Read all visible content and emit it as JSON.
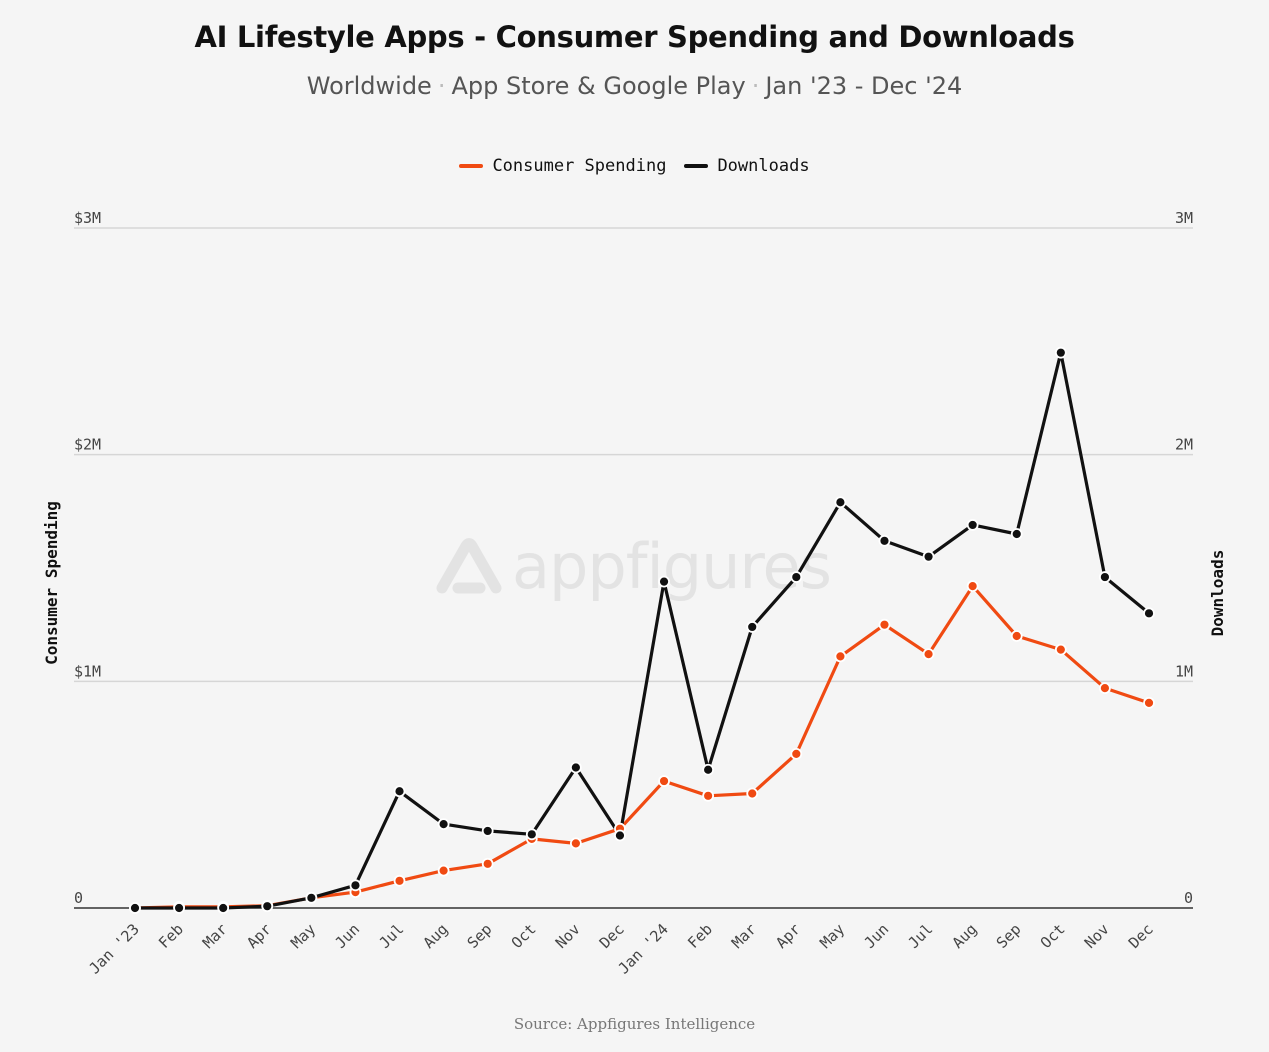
{
  "title": "AI Lifestyle Apps - Consumer Spending and Downloads",
  "subtitle": {
    "region": "Worldwide",
    "stores": "App Store & Google Play",
    "period": "Jan '23 - Dec '24",
    "separator": "·"
  },
  "watermark": "appfigures",
  "source": "Source: Appfigures Intelligence",
  "chart_data": {
    "type": "line",
    "categories": [
      "Jan '23",
      "Feb",
      "Mar",
      "Apr",
      "May",
      "Jun",
      "Jul",
      "Aug",
      "Sep",
      "Oct",
      "Nov",
      "Dec",
      "Jan '24",
      "Feb",
      "Mar",
      "Apr",
      "May",
      "Jun",
      "Jul",
      "Aug",
      "Sep",
      "Oct",
      "Nov",
      "Dec"
    ],
    "series": [
      {
        "name": "Consumer Spending",
        "color": "#f04a12",
        "axis": "left",
        "values": [
          0,
          5000,
          5000,
          10000,
          45000,
          70000,
          120000,
          165000,
          195000,
          305000,
          285000,
          350000,
          560000,
          495000,
          505000,
          680000,
          1110000,
          1250000,
          1120000,
          1420000,
          1200000,
          1140000,
          970000,
          905000
        ]
      },
      {
        "name": "Downloads",
        "color": "#111111",
        "axis": "right",
        "values": [
          0,
          0,
          0,
          8000,
          45000,
          100000,
          515000,
          370000,
          340000,
          325000,
          620000,
          320000,
          1440000,
          610000,
          1240000,
          1460000,
          1790000,
          1620000,
          1550000,
          1690000,
          1650000,
          2450000,
          1460000,
          1300000
        ]
      }
    ],
    "y_left": {
      "label": "Consumer Spending",
      "ylim": [
        0,
        3000000
      ],
      "ticks": [
        "0",
        "$1M",
        "$2M",
        "$3M"
      ]
    },
    "y_right": {
      "label": "Downloads",
      "ylim": [
        0,
        3000000
      ],
      "ticks": [
        "0",
        "1M",
        "2M",
        "3M"
      ]
    },
    "grid": true,
    "legend": "top-center"
  }
}
